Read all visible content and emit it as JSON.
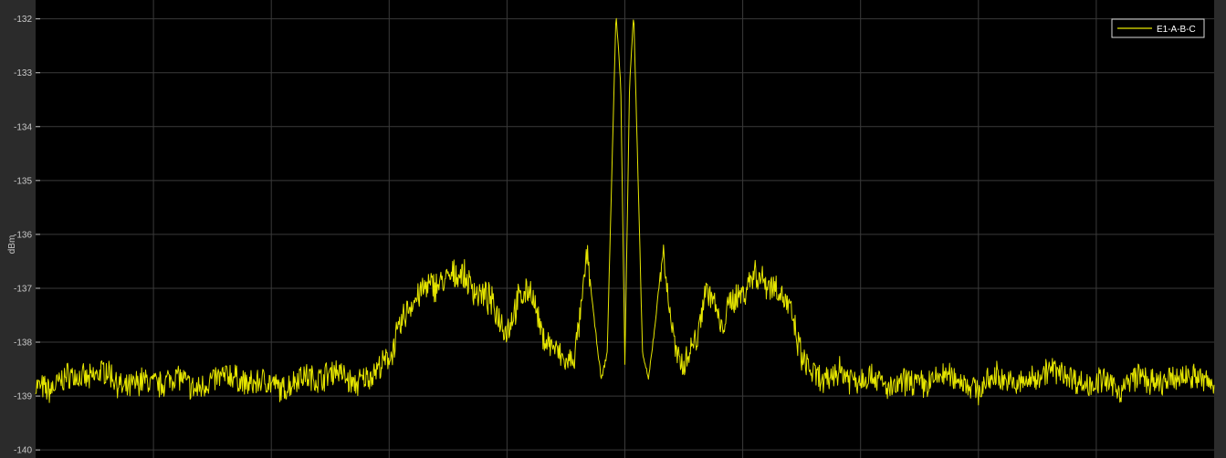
{
  "chart_data": {
    "type": "line",
    "title": "",
    "xlabel": "",
    "ylabel": "dBm",
    "ylim": [
      -140.15,
      -131.65
    ],
    "yticks": [
      -132,
      -133,
      -134,
      -135,
      -136,
      -137,
      -138,
      -139,
      -140
    ],
    "ytick_labels": [
      "-132",
      "-133",
      "-134",
      "-135",
      "-136",
      "-137",
      "-138",
      "-139",
      "-140"
    ],
    "x_grid_divisions": 10,
    "grid": true,
    "legend_position": "top-right",
    "colors": {
      "background": "#000000",
      "frame": "#2b2b2b",
      "grid": "#3a3a3a",
      "line": "#e6e600",
      "axis_text": "#c8c8c8"
    },
    "series": [
      {
        "name": "E1-A-B-C",
        "color": "#e6e600",
        "x": [
          0,
          0.012,
          0.028,
          0.045,
          0.06,
          0.075,
          0.09,
          0.105,
          0.12,
          0.135,
          0.15,
          0.165,
          0.18,
          0.195,
          0.21,
          0.225,
          0.24,
          0.255,
          0.27,
          0.285,
          0.3,
          0.315,
          0.33,
          0.345,
          0.36,
          0.375,
          0.385,
          0.4,
          0.41,
          0.42,
          0.43,
          0.44,
          0.45,
          0.457,
          0.463,
          0.468,
          0.474,
          0.48,
          0.485,
          0.489,
          0.4925,
          0.4965,
          0.5,
          0.504,
          0.5075,
          0.511,
          0.515,
          0.52,
          0.526,
          0.532,
          0.538,
          0.544,
          0.55,
          0.556,
          0.562,
          0.568,
          0.575,
          0.582,
          0.59,
          0.6,
          0.61,
          0.62,
          0.63,
          0.64,
          0.65,
          0.66,
          0.67,
          0.68,
          0.695,
          0.71,
          0.725,
          0.74,
          0.755,
          0.77,
          0.785,
          0.8,
          0.815,
          0.83,
          0.845,
          0.86,
          0.875,
          0.89,
          0.905,
          0.92,
          0.935,
          0.95,
          0.965,
          0.98,
          1.0
        ],
        "y": [
          -138.8,
          -138.9,
          -138.6,
          -138.7,
          -138.5,
          -138.9,
          -138.7,
          -138.8,
          -138.6,
          -138.9,
          -138.7,
          -138.6,
          -138.8,
          -138.7,
          -138.9,
          -138.6,
          -138.7,
          -138.5,
          -138.8,
          -138.6,
          -138.3,
          -137.4,
          -137.0,
          -136.9,
          -136.7,
          -137.1,
          -137.2,
          -137.8,
          -137.2,
          -137.0,
          -137.9,
          -138.1,
          -138.4,
          -138.3,
          -137.4,
          -136.3,
          -137.6,
          -138.7,
          -138.2,
          -134.8,
          -131.9,
          -133.2,
          -138.4,
          -133.2,
          -131.9,
          -134.8,
          -138.2,
          -138.7,
          -137.6,
          -136.3,
          -137.4,
          -138.3,
          -138.4,
          -138.1,
          -137.9,
          -137.0,
          -137.2,
          -137.8,
          -137.2,
          -137.1,
          -136.7,
          -136.9,
          -137.0,
          -137.4,
          -138.3,
          -138.6,
          -138.8,
          -138.5,
          -138.7,
          -138.6,
          -138.9,
          -138.7,
          -138.8,
          -138.6,
          -138.7,
          -138.9,
          -138.6,
          -138.8,
          -138.7,
          -138.5,
          -138.6,
          -138.8,
          -138.7,
          -138.9,
          -138.6,
          -138.8,
          -138.7,
          -138.6,
          -138.8
        ]
      }
    ]
  }
}
